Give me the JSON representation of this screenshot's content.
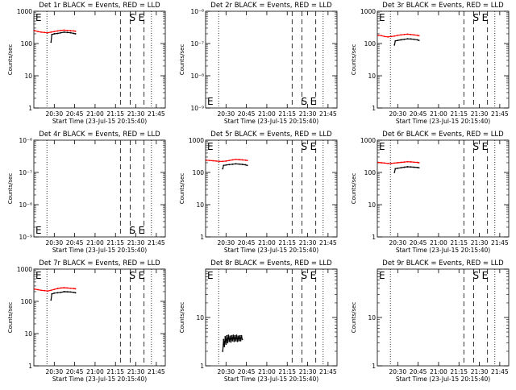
{
  "chart_data": [
    {
      "type": "line",
      "title": "Det 1r BLACK = Events, RED = LLD",
      "xlabel": "Start Time (23-Jul-15 20:15:40)",
      "ylabel": "Counts/sec",
      "yscale": "log",
      "ylim": [
        1,
        1000
      ],
      "yticks": [
        {
          "v": 1,
          "label": "1"
        },
        {
          "v": 10,
          "label": "10"
        },
        {
          "v": 100,
          "label": "100"
        },
        {
          "v": 1000,
          "label": "1000"
        }
      ],
      "xlim": [
        20.25,
        21.86
      ],
      "xticks": [
        "20:30",
        "20:45",
        "21:00",
        "21:15",
        "21:30",
        "21:45"
      ],
      "markers": [
        {
          "label": "E",
          "x": 20.27
        },
        {
          "label": "S",
          "x": 21.42
        },
        {
          "label": "E",
          "x": 21.53
        }
      ],
      "series": [
        {
          "color": "#ff0000",
          "x": [
            20.26,
            20.3,
            20.34,
            20.38,
            20.42,
            20.46,
            20.5,
            20.54,
            20.58,
            20.62,
            20.66,
            20.7,
            20.74,
            20.76
          ],
          "y": [
            250,
            235,
            225,
            220,
            215,
            225,
            235,
            245,
            255,
            260,
            255,
            250,
            245,
            240
          ]
        },
        {
          "color": "#000000",
          "x": [
            20.46,
            20.47,
            20.5,
            20.54,
            20.58,
            20.62,
            20.66,
            20.7,
            20.74,
            20.76
          ],
          "y": [
            110,
            190,
            200,
            205,
            215,
            225,
            220,
            215,
            205,
            200
          ]
        }
      ]
    },
    {
      "type": "line",
      "title": "Det 2r BLACK = Events, RED = LLD",
      "xlabel": "Start Time (23-Jul-15 20:15:40)",
      "ylabel": "Counts/sec",
      "yscale": "log",
      "ylim": [
        1e-06,
        1e-09
      ],
      "yticks": [
        {
          "v": 1e-09,
          "label": "10⁻⁹"
        },
        {
          "v": 1e-08,
          "label": "10⁻⁸"
        },
        {
          "v": 1e-07,
          "label": "10⁻⁷"
        },
        {
          "v": 1e-06,
          "label": "10⁻⁶"
        }
      ],
      "xlim": [
        20.25,
        21.86
      ],
      "xticks": [
        "20:30",
        "20:45",
        "21:00",
        "21:15",
        "21:30",
        "21:45"
      ],
      "markers": [
        {
          "label": "E",
          "x": 20.27
        },
        {
          "label": "S",
          "x": 21.42
        },
        {
          "label": "E",
          "x": 21.53
        }
      ],
      "series": []
    },
    {
      "type": "line",
      "title": "Det 3r BLACK = Events, RED = LLD",
      "xlabel": "Start Time (23-Jul-15 20:15:40)",
      "ylabel": "Counts/sec",
      "yscale": "log",
      "ylim": [
        1,
        1000
      ],
      "yticks": [
        {
          "v": 1,
          "label": "1"
        },
        {
          "v": 10,
          "label": "10"
        },
        {
          "v": 100,
          "label": "100"
        },
        {
          "v": 1000,
          "label": "1000"
        }
      ],
      "xlim": [
        20.25,
        21.86
      ],
      "xticks": [
        "20:30",
        "20:45",
        "21:00",
        "21:15",
        "21:30",
        "21:45"
      ],
      "markers": [
        {
          "label": "E",
          "x": 20.27
        },
        {
          "label": "S",
          "x": 21.42
        },
        {
          "label": "E",
          "x": 21.53
        }
      ],
      "series": [
        {
          "color": "#ff0000",
          "x": [
            20.26,
            20.3,
            20.34,
            20.38,
            20.42,
            20.46,
            20.5,
            20.54,
            20.58,
            20.62,
            20.66,
            20.7,
            20.74,
            20.76
          ],
          "y": [
            180,
            175,
            165,
            160,
            165,
            170,
            180,
            185,
            190,
            195,
            190,
            185,
            180,
            175
          ]
        },
        {
          "color": "#000000",
          "x": [
            20.46,
            20.47,
            20.5,
            20.54,
            20.58,
            20.62,
            20.66,
            20.7,
            20.74,
            20.76
          ],
          "y": [
            90,
            120,
            125,
            130,
            135,
            140,
            138,
            135,
            130,
            125
          ]
        }
      ]
    },
    {
      "type": "line",
      "title": "Det 4r BLACK = Events, RED = LLD",
      "xlabel": "Start Time (23-Jul-15 20:15:40)",
      "ylabel": "Counts/sec",
      "yscale": "log",
      "ylim": [
        1e-06,
        1e-09
      ],
      "yticks": [
        {
          "v": 1e-09,
          "label": "10⁻⁹"
        },
        {
          "v": 1e-08,
          "label": "10⁻⁸"
        },
        {
          "v": 1e-07,
          "label": "10⁻⁷"
        },
        {
          "v": 1e-06,
          "label": "10⁻⁶"
        }
      ],
      "xlim": [
        20.25,
        21.86
      ],
      "xticks": [
        "20:30",
        "20:45",
        "21:00",
        "21:15",
        "21:30",
        "21:45"
      ],
      "markers": [
        {
          "label": "E",
          "x": 20.27
        },
        {
          "label": "S",
          "x": 21.42
        },
        {
          "label": "E",
          "x": 21.53
        }
      ],
      "series": []
    },
    {
      "type": "line",
      "title": "Det 5r BLACK = Events, RED = LLD",
      "xlabel": "Start Time (23-Jul-15 20:15:40)",
      "ylabel": "Counts/sec",
      "yscale": "log",
      "ylim": [
        1,
        1000
      ],
      "yticks": [
        {
          "v": 1,
          "label": "1"
        },
        {
          "v": 10,
          "label": "10"
        },
        {
          "v": 100,
          "label": "100"
        },
        {
          "v": 1000,
          "label": "1000"
        }
      ],
      "xlim": [
        20.25,
        21.86
      ],
      "xticks": [
        "20:30",
        "20:45",
        "21:00",
        "21:15",
        "21:30",
        "21:45"
      ],
      "markers": [
        {
          "label": "E",
          "x": 20.27
        },
        {
          "label": "S",
          "x": 21.42
        },
        {
          "label": "E",
          "x": 21.53
        }
      ],
      "series": [
        {
          "color": "#ff0000",
          "x": [
            20.26,
            20.3,
            20.34,
            20.38,
            20.42,
            20.46,
            20.5,
            20.54,
            20.58,
            20.62,
            20.66,
            20.7,
            20.74,
            20.76
          ],
          "y": [
            240,
            235,
            230,
            225,
            220,
            220,
            225,
            235,
            245,
            255,
            250,
            245,
            240,
            235
          ]
        },
        {
          "color": "#000000",
          "x": [
            20.46,
            20.47,
            20.5,
            20.54,
            20.58,
            20.62,
            20.66,
            20.7,
            20.74,
            20.76
          ],
          "y": [
            130,
            165,
            170,
            175,
            180,
            185,
            182,
            178,
            172,
            165
          ]
        }
      ]
    },
    {
      "type": "line",
      "title": "Det 6r BLACK = Events, RED = LLD",
      "xlabel": "Start Time (23-Jul-15 20:15:40)",
      "ylabel": "Counts/sec",
      "yscale": "log",
      "ylim": [
        1,
        1000
      ],
      "yticks": [
        {
          "v": 1,
          "label": "1"
        },
        {
          "v": 10,
          "label": "10"
        },
        {
          "v": 100,
          "label": "100"
        },
        {
          "v": 1000,
          "label": "1000"
        }
      ],
      "xlim": [
        20.25,
        21.86
      ],
      "xticks": [
        "20:30",
        "20:45",
        "21:00",
        "21:15",
        "21:30",
        "21:45"
      ],
      "markers": [
        {
          "label": "E",
          "x": 20.27
        },
        {
          "label": "S",
          "x": 21.42
        },
        {
          "label": "E",
          "x": 21.53
        }
      ],
      "series": [
        {
          "color": "#ff0000",
          "x": [
            20.26,
            20.3,
            20.34,
            20.38,
            20.42,
            20.46,
            20.5,
            20.54,
            20.58,
            20.62,
            20.66,
            20.7,
            20.74,
            20.76
          ],
          "y": [
            205,
            200,
            195,
            190,
            190,
            195,
            200,
            205,
            210,
            215,
            212,
            208,
            205,
            200
          ]
        },
        {
          "color": "#000000",
          "x": [
            20.46,
            20.47,
            20.5,
            20.54,
            20.58,
            20.62,
            20.66,
            20.7,
            20.74,
            20.76
          ],
          "y": [
            100,
            130,
            135,
            140,
            145,
            150,
            148,
            145,
            142,
            140
          ]
        }
      ]
    },
    {
      "type": "line",
      "title": "Det 7r BLACK = Events, RED = LLD",
      "xlabel": "Start Time (23-Jul-15 20:15:40)",
      "ylabel": "Counts/sec",
      "yscale": "log",
      "ylim": [
        1,
        1000
      ],
      "yticks": [
        {
          "v": 1,
          "label": "1"
        },
        {
          "v": 10,
          "label": "10"
        },
        {
          "v": 100,
          "label": "100"
        },
        {
          "v": 1000,
          "label": "1000"
        }
      ],
      "xlim": [
        20.25,
        21.86
      ],
      "xticks": [
        "20:30",
        "20:45",
        "21:00",
        "21:15",
        "21:30",
        "21:45"
      ],
      "markers": [
        {
          "label": "E",
          "x": 20.27
        },
        {
          "label": "S",
          "x": 21.42
        },
        {
          "label": "E",
          "x": 21.53
        }
      ],
      "series": [
        {
          "color": "#ff0000",
          "x": [
            20.26,
            20.3,
            20.34,
            20.38,
            20.42,
            20.46,
            20.5,
            20.54,
            20.58,
            20.62,
            20.66,
            20.7,
            20.74,
            20.76
          ],
          "y": [
            240,
            230,
            220,
            215,
            210,
            220,
            235,
            250,
            260,
            265,
            260,
            255,
            250,
            245
          ]
        },
        {
          "color": "#000000",
          "x": [
            20.46,
            20.47,
            20.5,
            20.54,
            20.58,
            20.62,
            20.66,
            20.7,
            20.74,
            20.76
          ],
          "y": [
            110,
            170,
            180,
            185,
            190,
            200,
            198,
            195,
            190,
            185
          ]
        }
      ]
    },
    {
      "type": "line",
      "title": "Det 8r BLACK = Events, RED = LLD",
      "xlabel": "Start Time (23-Jul-15 20:15:40)",
      "ylabel": "Counts/sec",
      "yscale": "log",
      "ylim": [
        1,
        100
      ],
      "yticks": [
        {
          "v": 1,
          "label": "1"
        },
        {
          "v": 10,
          "label": "10"
        },
        {
          "v": 100,
          "label": ""
        }
      ],
      "xlim": [
        20.25,
        21.86
      ],
      "xticks": [
        "20:30",
        "20:45",
        "21:00",
        "21:15",
        "21:30",
        "21:45"
      ],
      "markers": [
        {
          "label": "E",
          "x": 20.27
        },
        {
          "label": "S",
          "x": 21.42
        },
        {
          "label": "E",
          "x": 21.53
        }
      ],
      "series": [
        {
          "color": "#000000",
          "x": [
            20.46,
            20.47,
            20.48,
            20.49,
            20.5,
            20.51,
            20.52,
            20.53,
            20.54,
            20.55,
            20.56,
            20.57,
            20.58,
            20.59,
            20.6,
            20.61,
            20.62,
            20.63,
            20.64,
            20.65,
            20.66,
            20.67,
            20.68,
            20.69,
            20.7
          ],
          "y": [
            2,
            3.5,
            2.5,
            4,
            2.8,
            4.2,
            3,
            4.3,
            3.2,
            4.1,
            3.1,
            4.2,
            3.3,
            4.3,
            3.2,
            4.2,
            3.3,
            4.3,
            3.2,
            4.1,
            3.3,
            4.2,
            3.3,
            4.2,
            3.5
          ]
        }
      ]
    },
    {
      "type": "line",
      "title": "Det 9r BLACK = Events, RED = LLD",
      "xlabel": "Start Time (23-Jul-15 20:15:40)",
      "ylabel": "Counts/sec",
      "yscale": "log",
      "ylim": [
        1,
        100
      ],
      "yticks": [
        {
          "v": 1,
          "label": "1"
        },
        {
          "v": 10,
          "label": "10"
        },
        {
          "v": 100,
          "label": ""
        }
      ],
      "xlim": [
        20.25,
        21.86
      ],
      "xticks": [
        "20:30",
        "20:45",
        "21:00",
        "21:15",
        "21:30",
        "21:45"
      ],
      "markers": [
        {
          "label": "E",
          "x": 20.27
        },
        {
          "label": "S",
          "x": 21.42
        },
        {
          "label": "E",
          "x": 21.53
        }
      ],
      "series": []
    }
  ]
}
